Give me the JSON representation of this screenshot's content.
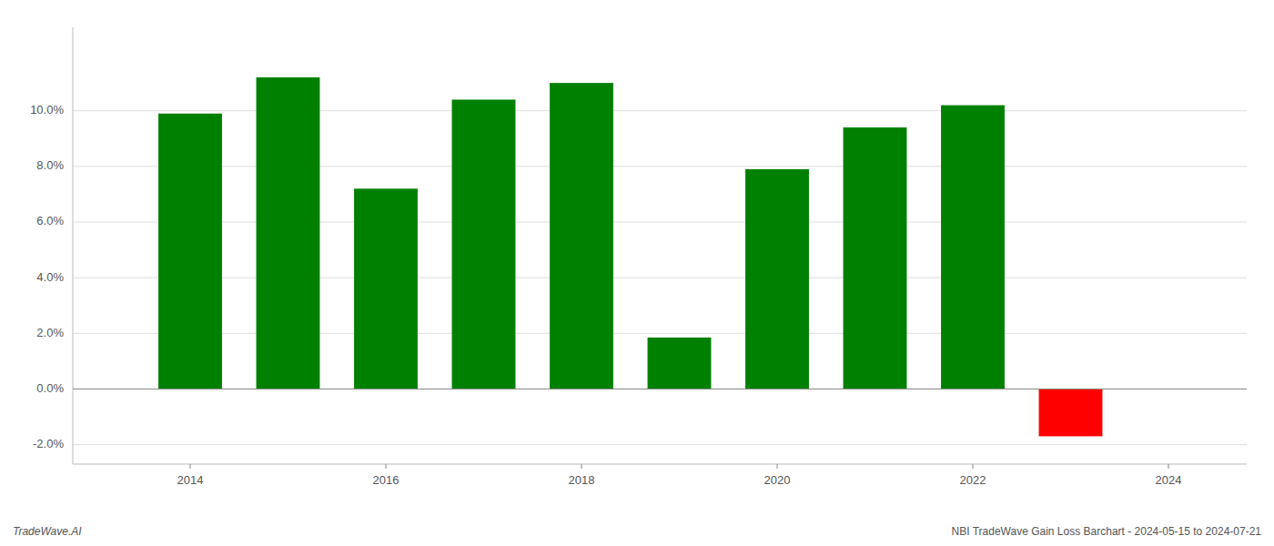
{
  "chart_data": {
    "type": "bar",
    "x": [
      2014,
      2015,
      2016,
      2017,
      2018,
      2019,
      2020,
      2021,
      2022,
      2023
    ],
    "values": [
      0.099,
      0.112,
      0.072,
      0.104,
      0.11,
      0.0185,
      0.079,
      0.094,
      0.102,
      -0.017
    ],
    "colors": [
      "#008000",
      "#008000",
      "#008000",
      "#008000",
      "#008000",
      "#008000",
      "#008000",
      "#008000",
      "#008000",
      "#ff0000"
    ],
    "xlim": [
      2012.8,
      2024.8
    ],
    "xticks": [
      2014,
      2016,
      2018,
      2020,
      2022,
      2024
    ],
    "ylim": [
      -0.027,
      0.13
    ],
    "yticks": [
      {
        "value": -0.02,
        "label": "-2.0%"
      },
      {
        "value": 0.0,
        "label": "0.0%"
      },
      {
        "value": 0.02,
        "label": "2.0%"
      },
      {
        "value": 0.04,
        "label": "4.0%"
      },
      {
        "value": 0.06,
        "label": "6.0%"
      },
      {
        "value": 0.08,
        "label": "8.0%"
      },
      {
        "value": 0.1,
        "label": "10.0%"
      }
    ],
    "grid": true,
    "annotations": [
      "TradeWave.AI",
      "NBI TradeWave Gain Loss Barchart - 2024-05-15 to 2024-07-21"
    ]
  }
}
